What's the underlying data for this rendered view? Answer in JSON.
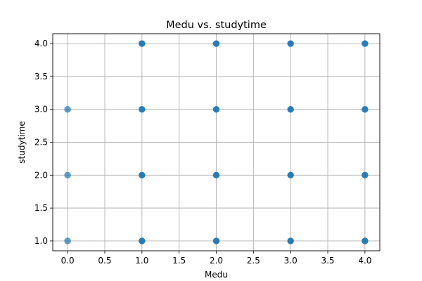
{
  "chart_data": {
    "type": "scatter",
    "title": "Medu vs. studytime",
    "xlabel": "Medu",
    "ylabel": "studytime",
    "xlim": [
      -0.2,
      4.2
    ],
    "ylim": [
      0.85,
      4.15
    ],
    "xticks": [
      0.0,
      0.5,
      1.0,
      1.5,
      2.0,
      2.5,
      3.0,
      3.5,
      4.0
    ],
    "xtick_labels": [
      "0.0",
      "0.5",
      "1.0",
      "1.5",
      "2.0",
      "2.5",
      "3.0",
      "3.5",
      "4.0"
    ],
    "yticks": [
      1.0,
      1.5,
      2.0,
      2.5,
      3.0,
      3.5,
      4.0
    ],
    "ytick_labels": [
      "1.0",
      "1.5",
      "2.0",
      "2.5",
      "3.0",
      "3.5",
      "4.0"
    ],
    "grid": true,
    "marker_color": "#1f77b4",
    "points": [
      {
        "x": 0,
        "y": 1,
        "density": "light"
      },
      {
        "x": 0,
        "y": 2,
        "density": "light"
      },
      {
        "x": 0,
        "y": 3,
        "density": "light"
      },
      {
        "x": 1,
        "y": 1,
        "density": "dense"
      },
      {
        "x": 1,
        "y": 2,
        "density": "dense"
      },
      {
        "x": 1,
        "y": 3,
        "density": "dense"
      },
      {
        "x": 1,
        "y": 4,
        "density": "dense"
      },
      {
        "x": 2,
        "y": 1,
        "density": "dense"
      },
      {
        "x": 2,
        "y": 2,
        "density": "dense"
      },
      {
        "x": 2,
        "y": 3,
        "density": "dense"
      },
      {
        "x": 2,
        "y": 4,
        "density": "dense"
      },
      {
        "x": 3,
        "y": 1,
        "density": "dense"
      },
      {
        "x": 3,
        "y": 2,
        "density": "dense"
      },
      {
        "x": 3,
        "y": 3,
        "density": "dense"
      },
      {
        "x": 3,
        "y": 4,
        "density": "dense"
      },
      {
        "x": 4,
        "y": 1,
        "density": "dense"
      },
      {
        "x": 4,
        "y": 2,
        "density": "dense"
      },
      {
        "x": 4,
        "y": 3,
        "density": "dense"
      },
      {
        "x": 4,
        "y": 4,
        "density": "dense"
      }
    ]
  }
}
